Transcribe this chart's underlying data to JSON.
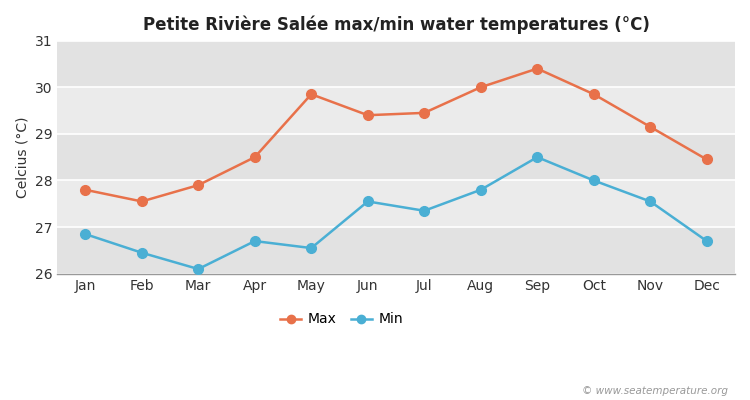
{
  "title": "Petite Rivière Salée max/min water temperatures (°C)",
  "ylabel": "Celcius (°C)",
  "months": [
    "Jan",
    "Feb",
    "Mar",
    "Apr",
    "May",
    "Jun",
    "Jul",
    "Aug",
    "Sep",
    "Oct",
    "Nov",
    "Dec"
  ],
  "max_temps": [
    27.8,
    27.55,
    27.9,
    28.5,
    29.85,
    29.4,
    29.45,
    30.0,
    30.4,
    29.85,
    29.15,
    28.45
  ],
  "min_temps": [
    26.85,
    26.45,
    26.1,
    26.7,
    26.55,
    27.55,
    27.35,
    27.8,
    28.5,
    28.0,
    27.55,
    26.7
  ],
  "max_color": "#e8714a",
  "min_color": "#4aafd4",
  "fig_bg_color": "#ffffff",
  "band_dark": "#e2e2e2",
  "band_light": "#ebebeb",
  "ylim": [
    26.0,
    31.0
  ],
  "yticks": [
    26,
    27,
    28,
    29,
    30,
    31
  ],
  "watermark": "© www.seatemperature.org",
  "legend_labels": [
    "Max",
    "Min"
  ],
  "linewidth": 1.8,
  "markersize": 7
}
